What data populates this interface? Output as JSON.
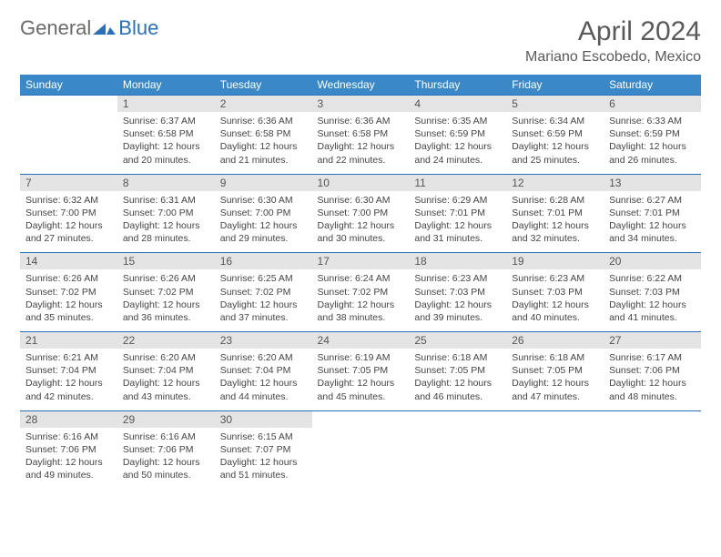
{
  "logo": {
    "text1": "General",
    "text2": "Blue",
    "color1": "#6a6a6a",
    "color2": "#2a70b8"
  },
  "title": "April 2024",
  "location": "Mariano Escobedo, Mexico",
  "colors": {
    "header_bg": "#3a88c8",
    "header_text": "#ffffff",
    "daynum_bg": "#e4e4e4",
    "border": "#2a70b8",
    "text": "#444444"
  },
  "fonts": {
    "title_size": 30,
    "location_size": 16,
    "header_size": 12,
    "cell_size": 10.5
  },
  "days_of_week": [
    "Sunday",
    "Monday",
    "Tuesday",
    "Wednesday",
    "Thursday",
    "Friday",
    "Saturday"
  ],
  "weeks": [
    {
      "nums": [
        "",
        "1",
        "2",
        "3",
        "4",
        "5",
        "6"
      ],
      "cells": [
        null,
        {
          "sunrise": "Sunrise: 6:37 AM",
          "sunset": "Sunset: 6:58 PM",
          "day1": "Daylight: 12 hours",
          "day2": "and 20 minutes."
        },
        {
          "sunrise": "Sunrise: 6:36 AM",
          "sunset": "Sunset: 6:58 PM",
          "day1": "Daylight: 12 hours",
          "day2": "and 21 minutes."
        },
        {
          "sunrise": "Sunrise: 6:36 AM",
          "sunset": "Sunset: 6:58 PM",
          "day1": "Daylight: 12 hours",
          "day2": "and 22 minutes."
        },
        {
          "sunrise": "Sunrise: 6:35 AM",
          "sunset": "Sunset: 6:59 PM",
          "day1": "Daylight: 12 hours",
          "day2": "and 24 minutes."
        },
        {
          "sunrise": "Sunrise: 6:34 AM",
          "sunset": "Sunset: 6:59 PM",
          "day1": "Daylight: 12 hours",
          "day2": "and 25 minutes."
        },
        {
          "sunrise": "Sunrise: 6:33 AM",
          "sunset": "Sunset: 6:59 PM",
          "day1": "Daylight: 12 hours",
          "day2": "and 26 minutes."
        }
      ]
    },
    {
      "nums": [
        "7",
        "8",
        "9",
        "10",
        "11",
        "12",
        "13"
      ],
      "cells": [
        {
          "sunrise": "Sunrise: 6:32 AM",
          "sunset": "Sunset: 7:00 PM",
          "day1": "Daylight: 12 hours",
          "day2": "and 27 minutes."
        },
        {
          "sunrise": "Sunrise: 6:31 AM",
          "sunset": "Sunset: 7:00 PM",
          "day1": "Daylight: 12 hours",
          "day2": "and 28 minutes."
        },
        {
          "sunrise": "Sunrise: 6:30 AM",
          "sunset": "Sunset: 7:00 PM",
          "day1": "Daylight: 12 hours",
          "day2": "and 29 minutes."
        },
        {
          "sunrise": "Sunrise: 6:30 AM",
          "sunset": "Sunset: 7:00 PM",
          "day1": "Daylight: 12 hours",
          "day2": "and 30 minutes."
        },
        {
          "sunrise": "Sunrise: 6:29 AM",
          "sunset": "Sunset: 7:01 PM",
          "day1": "Daylight: 12 hours",
          "day2": "and 31 minutes."
        },
        {
          "sunrise": "Sunrise: 6:28 AM",
          "sunset": "Sunset: 7:01 PM",
          "day1": "Daylight: 12 hours",
          "day2": "and 32 minutes."
        },
        {
          "sunrise": "Sunrise: 6:27 AM",
          "sunset": "Sunset: 7:01 PM",
          "day1": "Daylight: 12 hours",
          "day2": "and 34 minutes."
        }
      ]
    },
    {
      "nums": [
        "14",
        "15",
        "16",
        "17",
        "18",
        "19",
        "20"
      ],
      "cells": [
        {
          "sunrise": "Sunrise: 6:26 AM",
          "sunset": "Sunset: 7:02 PM",
          "day1": "Daylight: 12 hours",
          "day2": "and 35 minutes."
        },
        {
          "sunrise": "Sunrise: 6:26 AM",
          "sunset": "Sunset: 7:02 PM",
          "day1": "Daylight: 12 hours",
          "day2": "and 36 minutes."
        },
        {
          "sunrise": "Sunrise: 6:25 AM",
          "sunset": "Sunset: 7:02 PM",
          "day1": "Daylight: 12 hours",
          "day2": "and 37 minutes."
        },
        {
          "sunrise": "Sunrise: 6:24 AM",
          "sunset": "Sunset: 7:02 PM",
          "day1": "Daylight: 12 hours",
          "day2": "and 38 minutes."
        },
        {
          "sunrise": "Sunrise: 6:23 AM",
          "sunset": "Sunset: 7:03 PM",
          "day1": "Daylight: 12 hours",
          "day2": "and 39 minutes."
        },
        {
          "sunrise": "Sunrise: 6:23 AM",
          "sunset": "Sunset: 7:03 PM",
          "day1": "Daylight: 12 hours",
          "day2": "and 40 minutes."
        },
        {
          "sunrise": "Sunrise: 6:22 AM",
          "sunset": "Sunset: 7:03 PM",
          "day1": "Daylight: 12 hours",
          "day2": "and 41 minutes."
        }
      ]
    },
    {
      "nums": [
        "21",
        "22",
        "23",
        "24",
        "25",
        "26",
        "27"
      ],
      "cells": [
        {
          "sunrise": "Sunrise: 6:21 AM",
          "sunset": "Sunset: 7:04 PM",
          "day1": "Daylight: 12 hours",
          "day2": "and 42 minutes."
        },
        {
          "sunrise": "Sunrise: 6:20 AM",
          "sunset": "Sunset: 7:04 PM",
          "day1": "Daylight: 12 hours",
          "day2": "and 43 minutes."
        },
        {
          "sunrise": "Sunrise: 6:20 AM",
          "sunset": "Sunset: 7:04 PM",
          "day1": "Daylight: 12 hours",
          "day2": "and 44 minutes."
        },
        {
          "sunrise": "Sunrise: 6:19 AM",
          "sunset": "Sunset: 7:05 PM",
          "day1": "Daylight: 12 hours",
          "day2": "and 45 minutes."
        },
        {
          "sunrise": "Sunrise: 6:18 AM",
          "sunset": "Sunset: 7:05 PM",
          "day1": "Daylight: 12 hours",
          "day2": "and 46 minutes."
        },
        {
          "sunrise": "Sunrise: 6:18 AM",
          "sunset": "Sunset: 7:05 PM",
          "day1": "Daylight: 12 hours",
          "day2": "and 47 minutes."
        },
        {
          "sunrise": "Sunrise: 6:17 AM",
          "sunset": "Sunset: 7:06 PM",
          "day1": "Daylight: 12 hours",
          "day2": "and 48 minutes."
        }
      ]
    },
    {
      "nums": [
        "28",
        "29",
        "30",
        "",
        "",
        "",
        ""
      ],
      "cells": [
        {
          "sunrise": "Sunrise: 6:16 AM",
          "sunset": "Sunset: 7:06 PM",
          "day1": "Daylight: 12 hours",
          "day2": "and 49 minutes."
        },
        {
          "sunrise": "Sunrise: 6:16 AM",
          "sunset": "Sunset: 7:06 PM",
          "day1": "Daylight: 12 hours",
          "day2": "and 50 minutes."
        },
        {
          "sunrise": "Sunrise: 6:15 AM",
          "sunset": "Sunset: 7:07 PM",
          "day1": "Daylight: 12 hours",
          "day2": "and 51 minutes."
        },
        null,
        null,
        null,
        null
      ]
    }
  ]
}
